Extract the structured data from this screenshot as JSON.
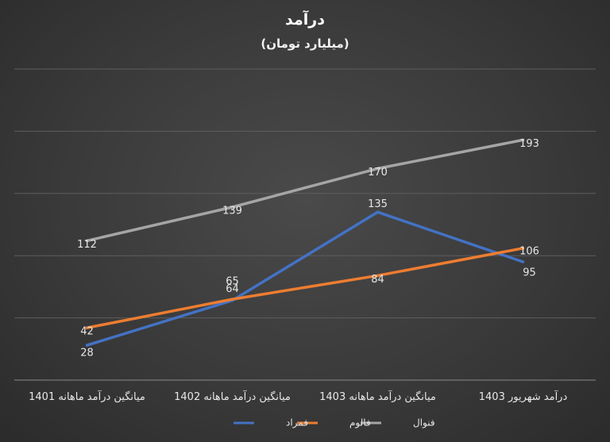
{
  "chart_data": {
    "type": "line",
    "title": "درآمد",
    "subtitle": "(میلیارد تومان)",
    "categories": [
      "میانگین درآمد ماهانه 1401",
      "میانگین درآمد ماهانه 1402",
      "میانگین درآمد ماهانه 1403",
      "درآمد شهریور 1403"
    ],
    "ylim": [
      0,
      250
    ],
    "grid": true,
    "legend_position": "bottom",
    "series": [
      {
        "name": "فمراد",
        "color": "#4472C4",
        "values": [
          28,
          64,
          135,
          95
        ]
      },
      {
        "name": "فالوم",
        "color": "#ED7D31",
        "values": [
          42,
          65,
          84,
          106
        ]
      },
      {
        "name": "فنوال",
        "color": "#A5A5A5",
        "values": [
          112,
          139,
          170,
          193
        ]
      }
    ]
  }
}
